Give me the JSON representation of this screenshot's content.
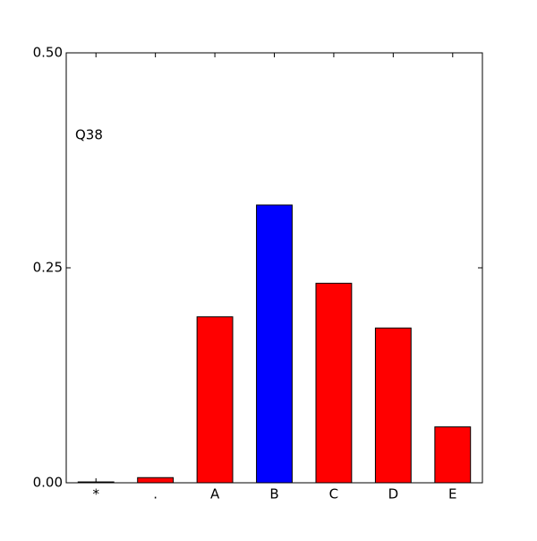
{
  "chart_data": {
    "type": "bar",
    "annotation": "Q38",
    "categories": [
      "*",
      ".",
      "A",
      "B",
      "C",
      "D",
      "E"
    ],
    "values": [
      0.001,
      0.006,
      0.193,
      0.323,
      0.232,
      0.18,
      0.065
    ],
    "colors": [
      "#ff0000",
      "#ff0000",
      "#ff0000",
      "#0000ff",
      "#ff0000",
      "#ff0000",
      "#ff0000"
    ],
    "ylim": [
      0,
      0.5
    ],
    "yticks": [
      {
        "value": 0,
        "label": "0.00"
      },
      {
        "value": 0.25,
        "label": "0.25"
      },
      {
        "value": 0.5,
        "label": "0.50"
      }
    ],
    "grid": false
  }
}
